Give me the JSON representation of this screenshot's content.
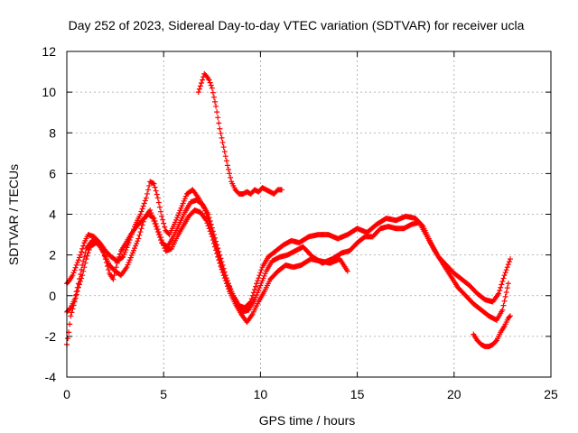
{
  "chart_data": {
    "type": "scatter",
    "title": "Day 252 of 2023, Sidereal Day-to-day VTEC variation (SDTVAR) for receiver ucla",
    "xlabel": "GPS time / hours",
    "ylabel": "SDTVAR / TECUs",
    "xlim": [
      0,
      25
    ],
    "ylim": [
      -4,
      12
    ],
    "xticks": [
      0,
      5,
      10,
      15,
      20,
      25
    ],
    "yticks": [
      -4,
      -2,
      0,
      2,
      4,
      6,
      8,
      10,
      12
    ],
    "grid": true,
    "marker": "+",
    "color": "#ff0000",
    "series": [
      {
        "name": "track-1",
        "x": [
          0.0,
          0.1,
          0.3,
          0.5,
          0.7,
          0.9,
          1.1,
          1.4,
          1.7,
          2.0,
          2.3,
          2.6,
          2.9,
          3.2,
          3.5,
          3.8,
          4.1,
          4.3,
          4.5,
          4.7,
          4.9,
          5.1,
          5.3,
          5.6,
          5.9,
          6.2,
          6.5,
          6.8,
          7.1,
          7.4,
          7.7,
          8.0,
          8.3,
          8.6,
          8.9,
          9.2,
          9.5,
          9.8,
          10.1,
          10.4,
          10.8,
          11.2,
          11.6,
          12.0,
          12.5,
          13.0,
          13.5,
          14.0,
          14.5,
          15.0,
          15.5,
          16.0,
          16.5,
          17.0,
          17.5,
          18.0,
          18.4,
          18.8,
          19.2,
          19.6,
          20.0,
          20.4,
          20.8,
          21.2,
          21.6,
          22.0,
          22.3,
          22.6,
          22.9
        ],
        "y": [
          0.6,
          0.7,
          1.0,
          1.5,
          2.0,
          2.6,
          3.0,
          2.9,
          2.6,
          2.2,
          1.9,
          1.7,
          1.9,
          2.6,
          3.4,
          4.0,
          4.8,
          5.6,
          5.5,
          4.8,
          3.9,
          3.2,
          3.0,
          3.6,
          4.3,
          5.0,
          5.2,
          4.8,
          4.3,
          3.5,
          2.5,
          1.4,
          0.6,
          0.0,
          -0.5,
          -0.6,
          -0.3,
          0.6,
          1.4,
          1.9,
          2.2,
          2.5,
          2.7,
          2.6,
          2.9,
          3.0,
          3.0,
          2.8,
          3.0,
          3.3,
          3.1,
          3.5,
          3.8,
          3.7,
          3.9,
          3.8,
          3.4,
          2.6,
          1.9,
          1.5,
          1.1,
          0.8,
          0.5,
          0.1,
          -0.2,
          -0.3,
          0.1,
          1.0,
          1.8
        ]
      },
      {
        "name": "track-2",
        "x": [
          0.0,
          0.2,
          0.4,
          0.6,
          0.8,
          1.0,
          1.3,
          1.6,
          1.9,
          2.2,
          2.5,
          2.8,
          3.1,
          3.4,
          3.7,
          4.0,
          4.3,
          4.6,
          4.9,
          5.2,
          5.5,
          5.8,
          6.1,
          6.4,
          6.7,
          7.0,
          7.3,
          7.6,
          7.9,
          8.2,
          8.5,
          8.8,
          9.1,
          9.4,
          9.7,
          10.0,
          10.3,
          10.6,
          11.0,
          11.4,
          11.8,
          12.2,
          12.7,
          13.2,
          13.7,
          14.2,
          14.6,
          15.0,
          15.4,
          15.8,
          16.2,
          16.6,
          17.0,
          17.4,
          17.8,
          18.2,
          18.6,
          19.0,
          19.4,
          19.8,
          20.2,
          20.6,
          21.0,
          21.4,
          21.8,
          22.2,
          22.5,
          22.8
        ],
        "y": [
          -0.8,
          -0.6,
          -0.2,
          0.6,
          1.5,
          2.3,
          2.7,
          2.6,
          2.1,
          1.5,
          1.2,
          1.0,
          1.4,
          2.1,
          2.8,
          3.8,
          4.2,
          3.4,
          2.6,
          2.4,
          2.9,
          3.5,
          4.1,
          4.6,
          4.7,
          4.5,
          4.0,
          3.0,
          2.0,
          1.0,
          0.2,
          -0.4,
          -0.8,
          -0.7,
          -0.2,
          0.5,
          1.2,
          1.7,
          1.9,
          2.0,
          2.2,
          2.4,
          1.9,
          1.6,
          1.8,
          2.1,
          2.2,
          2.6,
          2.9,
          2.9,
          3.3,
          3.4,
          3.3,
          3.3,
          3.5,
          3.6,
          2.9,
          2.2,
          1.6,
          1.0,
          0.4,
          0.0,
          -0.4,
          -0.7,
          -1.0,
          -1.2,
          -0.7,
          0.6
        ]
      },
      {
        "name": "track-3",
        "x": [
          0.0,
          0.1,
          0.2,
          0.4,
          0.6,
          0.8,
          1.0,
          1.2,
          1.5,
          1.8,
          2.0,
          2.2,
          2.4,
          2.6,
          2.8,
          3.0,
          3.3,
          3.6,
          3.9,
          4.2,
          4.5,
          4.8,
          5.1,
          5.4,
          5.7,
          6.0,
          6.3,
          6.6,
          6.9,
          7.2,
          7.5,
          7.8,
          8.1,
          8.4,
          8.7,
          9.0,
          9.3,
          9.6,
          9.9,
          10.2,
          10.5,
          10.9,
          11.3,
          11.7,
          12.1,
          12.6,
          13.1,
          13.6,
          14.1,
          14.5
        ],
        "y": [
          -2.4,
          -1.8,
          -1.0,
          -0.3,
          0.4,
          1.0,
          1.8,
          2.4,
          2.6,
          2.4,
          1.8,
          1.1,
          0.8,
          1.6,
          2.2,
          2.5,
          3.0,
          3.4,
          3.7,
          4.0,
          3.8,
          3.0,
          2.2,
          2.3,
          2.9,
          3.4,
          3.9,
          4.2,
          4.1,
          3.7,
          2.9,
          1.9,
          1.0,
          0.2,
          -0.4,
          -0.9,
          -1.3,
          -0.9,
          -0.3,
          0.2,
          0.8,
          1.2,
          1.5,
          1.4,
          1.5,
          1.8,
          1.7,
          1.6,
          1.8,
          1.2
        ]
      },
      {
        "name": "track-4",
        "x": [
          6.8,
          6.9,
          7.0,
          7.1,
          7.2,
          7.35,
          7.5,
          7.7,
          7.9,
          8.1,
          8.3,
          8.5,
          8.7,
          8.9,
          9.1,
          9.3,
          9.5,
          9.7,
          9.9,
          10.1,
          10.3,
          10.5,
          10.7,
          10.9,
          11.1
        ],
        "y": [
          10.0,
          10.3,
          10.6,
          10.9,
          10.8,
          10.6,
          10.2,
          9.3,
          8.2,
          7.3,
          6.4,
          5.6,
          5.2,
          5.0,
          5.0,
          5.1,
          5.0,
          5.2,
          5.1,
          5.3,
          5.2,
          5.1,
          5.0,
          5.2,
          5.2
        ]
      },
      {
        "name": "track-5",
        "x": [
          21.0,
          21.2,
          21.4,
          21.6,
          21.8,
          22.0,
          22.2,
          22.4,
          22.6,
          22.8,
          22.9
        ],
        "y": [
          -1.9,
          -2.2,
          -2.4,
          -2.5,
          -2.5,
          -2.4,
          -2.2,
          -1.8,
          -1.5,
          -1.1,
          -1.0
        ]
      }
    ]
  }
}
